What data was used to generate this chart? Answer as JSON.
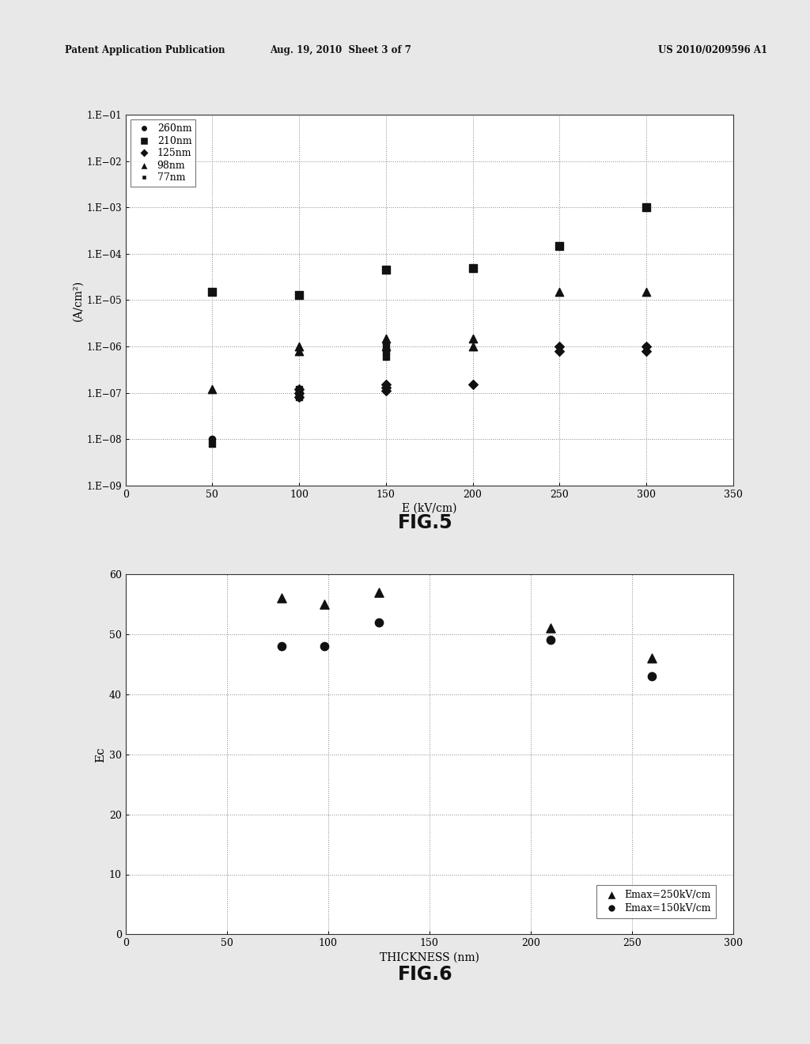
{
  "fig5": {
    "xlabel": "E (kV/cm)",
    "ylabel": "(A/cm²)",
    "xlim": [
      0,
      350
    ],
    "ylim_log": [
      -9,
      -1
    ],
    "series": {
      "260nm": {
        "marker": "o",
        "x": [
          50,
          300
        ],
        "y": [
          1e-08,
          1e-06
        ]
      },
      "210nm": {
        "marker": "s",
        "x": [
          50,
          100,
          150,
          200,
          250,
          300
        ],
        "y": [
          1.5e-05,
          1.3e-05,
          4.5e-05,
          5e-05,
          0.00015,
          0.001
        ]
      },
      "125nm": {
        "marker": "D",
        "x": [
          100,
          100,
          100,
          150,
          150,
          150,
          200,
          250,
          250,
          300,
          300
        ],
        "y": [
          1.2e-07,
          1e-07,
          8e-08,
          1.5e-07,
          1.3e-07,
          1.1e-07,
          1.5e-07,
          1e-06,
          8e-07,
          1e-06,
          8e-07
        ]
      },
      "98nm": {
        "marker": "^",
        "x": [
          50,
          100,
          100,
          150,
          150,
          200,
          200,
          250,
          300
        ],
        "y": [
          1.2e-07,
          1e-06,
          8e-07,
          1.5e-06,
          1e-06,
          1.5e-06,
          1e-06,
          1.5e-05,
          1.5e-05
        ]
      },
      "77nm": {
        "marker": "s",
        "x": [
          50,
          100,
          100,
          100,
          150,
          150,
          150
        ],
        "y": [
          8e-09,
          1.2e-07,
          1e-07,
          8e-08,
          1e-06,
          8e-07,
          6e-07
        ]
      }
    }
  },
  "fig6": {
    "xlabel": "THICKNESS (nm)",
    "ylabel": "Ec",
    "xlim": [
      0,
      300
    ],
    "ylim": [
      0,
      60
    ],
    "yticks": [
      0,
      10,
      20,
      30,
      40,
      50,
      60
    ],
    "xticks": [
      0,
      50,
      100,
      150,
      200,
      250,
      300
    ],
    "series": {
      "Emax=250kV/cm": {
        "marker": "^",
        "x": [
          77,
          98,
          125,
          210,
          260
        ],
        "y": [
          56,
          55,
          57,
          51,
          46
        ]
      },
      "Emax=150kV/cm": {
        "marker": "o",
        "x": [
          77,
          98,
          125,
          210,
          260
        ],
        "y": [
          48,
          48,
          52,
          49,
          43
        ]
      }
    }
  },
  "header_left": "Patent Application Publication",
  "header_mid": "Aug. 19, 2010  Sheet 3 of 7",
  "header_right": "US 2010/0209596 A1",
  "fig5_label": "FIG.5",
  "fig6_label": "FIG.6",
  "color": "#111111",
  "bg_color": "#e8e8e8"
}
